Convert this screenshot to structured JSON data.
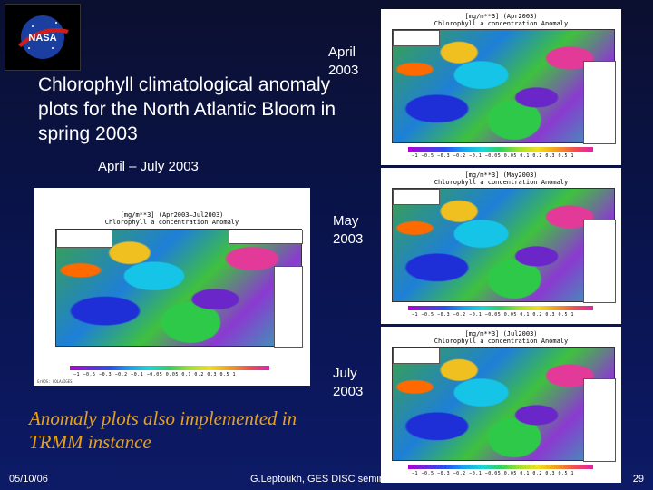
{
  "logo": {
    "text": "NASA"
  },
  "title": "Chlorophyll climatological anomaly plots for the North Atlantic Bloom in spring 2003",
  "subtitle": "April – July 2003",
  "note": "Anomaly plots also implemented in TRMM instance",
  "main_map": {
    "header_line1": "[mg/m**3] (Apr2003–Jul2003)",
    "header_line2": "Chlorophyll a concentration Anomaly",
    "colorbar": "−1  −0.5 −0.3 −0.2 −0.1 −0.05 0.05  0.1  0.2  0.3  0.5  1",
    "credit": "GrADS: COLA/IGES"
  },
  "maps": [
    {
      "month_label": "April\n2003",
      "header_line1": "[mg/m**3] (Apr2003)",
      "header_line2": "Chlorophyll a concentration Anomaly",
      "colorbar": "−1  −0.5 −0.3 −0.2 −0.1 −0.05 0.05  0.1  0.2  0.3  0.5  1"
    },
    {
      "month_label": "May\n2003",
      "header_line1": "[mg/m**3] (May2003)",
      "header_line2": "Chlorophyll a concentration Anomaly",
      "colorbar": "−1  −0.5 −0.3 −0.2 −0.1 −0.05 0.05  0.1  0.2  0.3  0.5  1"
    },
    {
      "month_label": "July\n2003",
      "header_line1": "[mg/m**3] (Jul2003)",
      "header_line2": "Chlorophyll a concentration Anomaly",
      "colorbar": "−1  −0.5 −0.3 −0.2 −0.1 −0.05 0.05  0.1  0.2  0.3  0.5  1"
    }
  ],
  "footer": {
    "date": "05/10/06",
    "presenter": "G.Leptoukh, GES DISC seminar",
    "page_number": "29"
  },
  "colors": {
    "note": "#e6a21a",
    "background": "#0a1450"
  }
}
